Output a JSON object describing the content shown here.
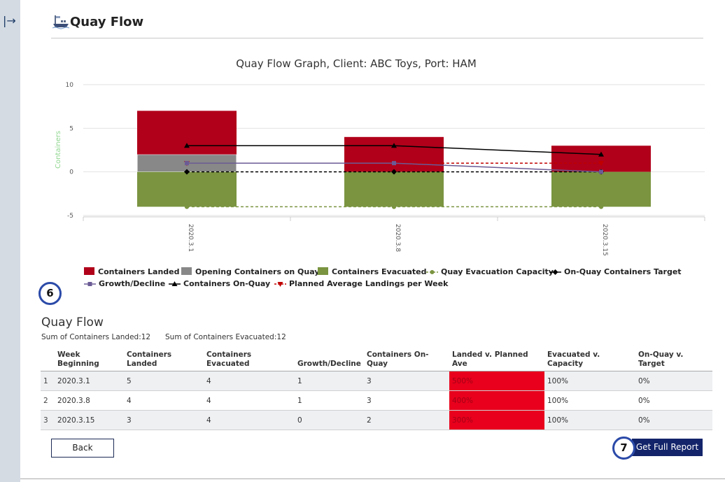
{
  "page": {
    "title": "Quay Flow"
  },
  "chart_data": {
    "type": "bar",
    "title": "Quay Flow Graph, Client: ABC Toys, Port: HAM",
    "ylabel": "Containers",
    "ylim": [
      -5,
      10
    ],
    "yticks": [
      10,
      5,
      0,
      -5
    ],
    "categories": [
      "2020.3.1",
      "2020.3.8",
      "2020.3.15"
    ],
    "legend_position": "bottom",
    "series": [
      {
        "name": "Containers Landed",
        "kind": "stacked-bar",
        "color": "#b0001a",
        "values": [
          5,
          4,
          3
        ]
      },
      {
        "name": "Opening Containers on Quay",
        "kind": "stacked-bar",
        "color": "#888888",
        "values": [
          2,
          0,
          0
        ]
      },
      {
        "name": "Containers Evacuated",
        "kind": "bar-negative",
        "color": "#7a9440",
        "values": [
          -4,
          -4,
          -4
        ]
      },
      {
        "name": "Quay Evacuation Capacity",
        "kind": "dashed-line",
        "color": "#7a9440",
        "values": [
          -4,
          -4,
          -4
        ]
      },
      {
        "name": "On-Quay Containers Target",
        "kind": "dashed-line",
        "color": "#000000",
        "values": [
          0,
          0,
          0
        ]
      },
      {
        "name": "Growth/Decline",
        "kind": "line",
        "color": "#6b5b95",
        "values": [
          1,
          1,
          0
        ]
      },
      {
        "name": "Containers On-Quay",
        "kind": "line",
        "color": "#000000",
        "values": [
          3,
          3,
          2
        ]
      },
      {
        "name": "Planned Average Landings per Week",
        "kind": "dashed-line",
        "color": "#c00000",
        "values": [
          1,
          1,
          1
        ]
      }
    ]
  },
  "badges": {
    "legend_badge": "6",
    "report_badge": "7"
  },
  "section": {
    "title": "Quay Flow",
    "sum_landed": "Sum of Containers Landed:12",
    "sum_evacuated": "Sum of Containers Evacuated:12"
  },
  "table": {
    "headers": [
      "Week\nBeginning",
      "Containers\nLanded",
      "Containers\nEvacuated",
      "Growth/Decline",
      "Containers On-Quay",
      "Landed v. Planned Ave",
      "Evacuated v. Capacity",
      "On-Quay v. Target"
    ],
    "rows": [
      [
        "1",
        "2020.3.1",
        "5",
        "4",
        "1",
        "3",
        "500%",
        "100%",
        "0%"
      ],
      [
        "2",
        "2020.3.8",
        "4",
        "4",
        "1",
        "3",
        "400%",
        "100%",
        "0%"
      ],
      [
        "3",
        "2020.3.15",
        "3",
        "4",
        "0",
        "2",
        "300%",
        "100%",
        "0%"
      ]
    ]
  },
  "buttons": {
    "back": "Back",
    "report": "Get Full Report"
  },
  "icons": {
    "collapse": "sidebar-expand-icon",
    "ship": "ship-icon"
  }
}
